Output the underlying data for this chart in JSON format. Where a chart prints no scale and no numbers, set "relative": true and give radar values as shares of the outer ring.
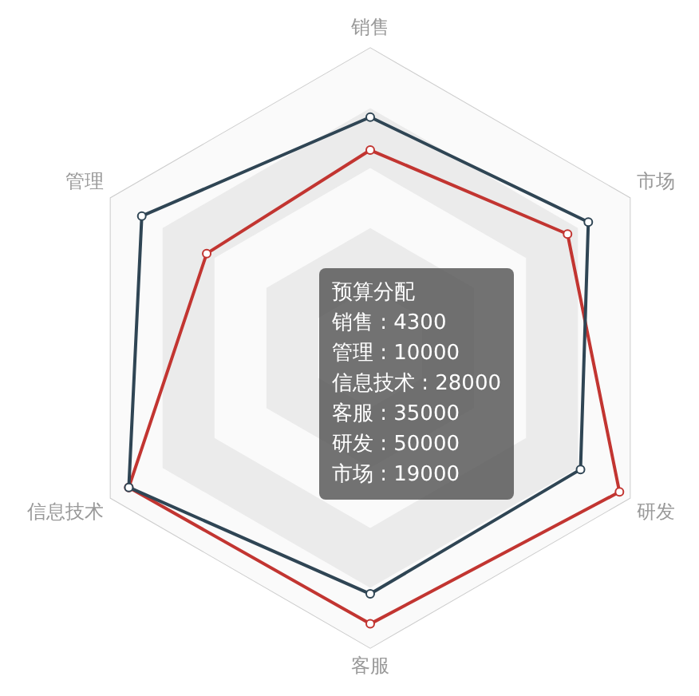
{
  "chart_data": {
    "type": "radar",
    "categories": [
      "销售",
      "市场",
      "研发",
      "客服",
      "信息技术",
      "管理"
    ],
    "relative": true,
    "marker": "circle",
    "grid": true,
    "legend": false,
    "series": [
      {
        "color": "#2f4554",
        "values": [
          0.77,
          0.84,
          0.81,
          0.82,
          0.93,
          0.88
        ]
      },
      {
        "color": "#c23531",
        "values": [
          0.66,
          0.76,
          0.96,
          0.92,
          0.93,
          0.63
        ]
      }
    ],
    "annotations": [
      "预算分配",
      "销售 : 4300",
      "管理 : 10000",
      "信息技术 : 28000",
      "客服 : 35000",
      "研发 : 50000",
      "市场 : 19000"
    ]
  }
}
